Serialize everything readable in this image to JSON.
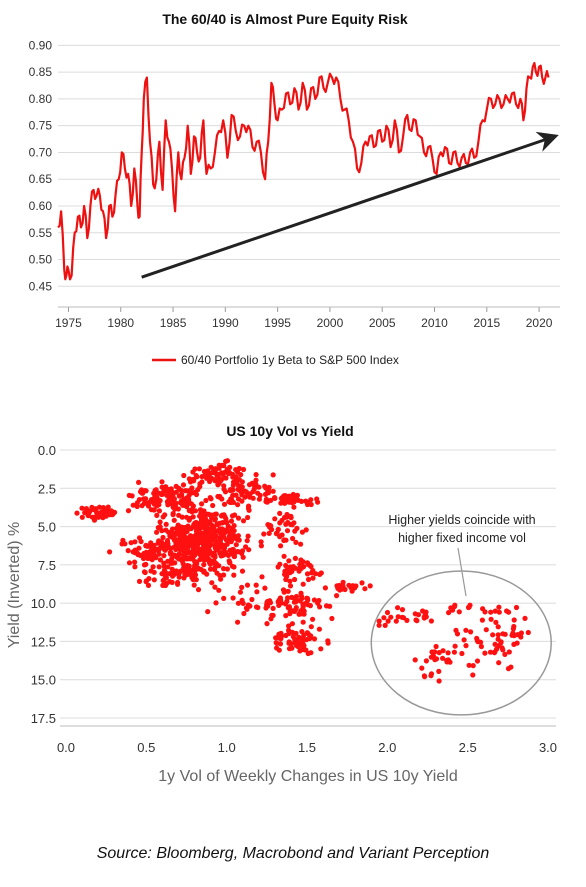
{
  "chart_data": [
    {
      "type": "line",
      "title": "The 60/40 is Almost Pure Equity Risk",
      "xlim": [
        1974,
        2022
      ],
      "ylim": [
        0.43,
        0.91
      ],
      "x_ticks": [
        1975,
        1980,
        1985,
        1990,
        1995,
        2000,
        2005,
        2010,
        2015,
        2020
      ],
      "y_ticks": [
        0.45,
        0.5,
        0.55,
        0.6,
        0.65,
        0.7,
        0.75,
        0.8,
        0.85,
        0.9
      ],
      "y_tick_labels": [
        "0.45",
        "0.50",
        "0.55",
        "0.60",
        "0.65",
        "0.70",
        "0.75",
        "0.80",
        "0.85",
        "0.90"
      ],
      "grid": "horizontal",
      "legend_position": "bottom",
      "series": [
        {
          "name": "60/40 Portfolio 1y Beta to S&P 500 Index",
          "color": "#ee1111",
          "x": [
            1974.0,
            1974.3,
            1974.6,
            1974.8,
            1975.0,
            1975.3,
            1975.6,
            1975.9,
            1976.2,
            1976.5,
            1976.8,
            1977.1,
            1977.4,
            1977.7,
            1978.0,
            1978.3,
            1978.6,
            1978.9,
            1979.2,
            1979.5,
            1979.8,
            1980.1,
            1980.4,
            1980.7,
            1981.0,
            1981.3,
            1981.6,
            1981.8,
            1982.0,
            1982.2,
            1982.5,
            1982.8,
            1983.1,
            1983.4,
            1983.7,
            1984.0,
            1984.3,
            1984.6,
            1984.9,
            1985.2,
            1985.5,
            1985.8,
            1986.1,
            1986.4,
            1986.7,
            1987.0,
            1987.3,
            1987.6,
            1987.9,
            1988.2,
            1988.6,
            1989.0,
            1989.4,
            1989.8,
            1990.2,
            1990.6,
            1991.0,
            1991.4,
            1991.8,
            1992.2,
            1992.6,
            1993.0,
            1993.4,
            1993.8,
            1994.1,
            1994.4,
            1994.7,
            1995.0,
            1995.4,
            1995.8,
            1996.2,
            1996.6,
            1997.0,
            1997.4,
            1997.8,
            1998.2,
            1998.6,
            1999.0,
            1999.4,
            1999.8,
            2000.2,
            2000.6,
            2001.0,
            2001.4,
            2001.8,
            2002.2,
            2002.6,
            2003.0,
            2003.4,
            2003.8,
            2004.2,
            2004.6,
            2005.0,
            2005.4,
            2005.8,
            2006.2,
            2006.6,
            2007.0,
            2007.4,
            2007.8,
            2008.2,
            2008.6,
            2009.0,
            2009.4,
            2009.8,
            2010.2,
            2010.6,
            2011.0,
            2011.4,
            2011.8,
            2012.2,
            2012.6,
            2013.0,
            2013.4,
            2013.8,
            2014.2,
            2014.6,
            2015.0,
            2015.4,
            2015.8,
            2016.2,
            2016.6,
            2017.0,
            2017.4,
            2017.8,
            2018.2,
            2018.5,
            2018.8,
            2019.1,
            2019.4,
            2019.7,
            2020.0,
            2020.3,
            2020.6,
            2020.9
          ],
          "y": [
            0.56,
            0.59,
            0.48,
            0.47,
            0.48,
            0.47,
            0.55,
            0.58,
            0.56,
            0.6,
            0.54,
            0.6,
            0.63,
            0.62,
            0.62,
            0.59,
            0.54,
            0.6,
            0.58,
            0.62,
            0.65,
            0.7,
            0.67,
            0.66,
            0.6,
            0.67,
            0.6,
            0.58,
            0.7,
            0.8,
            0.84,
            0.72,
            0.64,
            0.65,
            0.72,
            0.63,
            0.76,
            0.72,
            0.67,
            0.59,
            0.7,
            0.65,
            0.69,
            0.75,
            0.66,
            0.73,
            0.7,
            0.69,
            0.76,
            0.66,
            0.67,
            0.7,
            0.74,
            0.76,
            0.69,
            0.77,
            0.74,
            0.73,
            0.75,
            0.75,
            0.71,
            0.72,
            0.7,
            0.65,
            0.72,
            0.83,
            0.79,
            0.76,
            0.78,
            0.81,
            0.79,
            0.82,
            0.78,
            0.83,
            0.78,
            0.82,
            0.8,
            0.84,
            0.82,
            0.83,
            0.84,
            0.84,
            0.8,
            0.78,
            0.76,
            0.72,
            0.67,
            0.68,
            0.72,
            0.73,
            0.71,
            0.74,
            0.72,
            0.75,
            0.71,
            0.76,
            0.7,
            0.73,
            0.77,
            0.74,
            0.76,
            0.73,
            0.7,
            0.71,
            0.69,
            0.66,
            0.7,
            0.71,
            0.68,
            0.7,
            0.68,
            0.69,
            0.68,
            0.7,
            0.69,
            0.72,
            0.76,
            0.78,
            0.8,
            0.79,
            0.8,
            0.79,
            0.8,
            0.81,
            0.79,
            0.8,
            0.76,
            0.82,
            0.84,
            0.86,
            0.85,
            0.86,
            0.84,
            0.84,
            0.84
          ]
        }
      ],
      "annotations": [
        {
          "type": "arrow",
          "from": [
            1982.0,
            0.467
          ],
          "to": [
            2021.5,
            0.73
          ],
          "color": "#222222"
        }
      ]
    },
    {
      "type": "scatter",
      "title": "US 10y Vol vs Yield",
      "xlabel": "1y Vol of Weekly Changes in US 10y Yield",
      "ylabel": "Yield (Inverted) %",
      "xlim": [
        -0.05,
        3.05
      ],
      "ylim": [
        0.0,
        17.5
      ],
      "y_inverted": true,
      "x_ticks": [
        0.0,
        0.5,
        1.0,
        1.5,
        2.0,
        2.5,
        3.0
      ],
      "x_tick_labels": [
        "0.0",
        "0.5",
        "1.0",
        "1.5",
        "2.0",
        "2.5",
        "3.0"
      ],
      "y_ticks": [
        0.0,
        2.5,
        5.0,
        7.5,
        10.0,
        12.5,
        15.0,
        17.5
      ],
      "y_tick_labels": [
        "0.0",
        "2.5",
        "5.0",
        "7.5",
        "10.0",
        "12.5",
        "15.0",
        "17.5"
      ],
      "grid": "horizontal",
      "point_color": "#ff1111",
      "clusters": [
        {
          "cx": 0.85,
          "cy": 6.0,
          "sx": 0.18,
          "sy": 1.6,
          "n": 520
        },
        {
          "cx": 0.62,
          "cy": 3.2,
          "sx": 0.14,
          "sy": 0.7,
          "n": 120
        },
        {
          "cx": 0.95,
          "cy": 1.6,
          "sx": 0.12,
          "sy": 0.6,
          "n": 70
        },
        {
          "cx": 1.15,
          "cy": 2.7,
          "sx": 0.14,
          "sy": 0.7,
          "n": 70
        },
        {
          "cx": 0.2,
          "cy": 4.1,
          "sx": 0.08,
          "sy": 0.25,
          "n": 45
        },
        {
          "cx": 0.5,
          "cy": 6.6,
          "sx": 0.12,
          "sy": 0.6,
          "n": 60
        },
        {
          "cx": 0.65,
          "cy": 8.3,
          "sx": 0.12,
          "sy": 0.5,
          "n": 35
        },
        {
          "cx": 1.42,
          "cy": 3.3,
          "sx": 0.1,
          "sy": 0.3,
          "n": 35
        },
        {
          "cx": 1.35,
          "cy": 5.3,
          "sx": 0.1,
          "sy": 0.8,
          "n": 40
        },
        {
          "cx": 1.45,
          "cy": 7.8,
          "sx": 0.1,
          "sy": 0.6,
          "n": 40
        },
        {
          "cx": 1.45,
          "cy": 10.2,
          "sx": 0.15,
          "sy": 1.0,
          "n": 70
        },
        {
          "cx": 1.45,
          "cy": 12.5,
          "sx": 0.1,
          "sy": 0.6,
          "n": 70
        },
        {
          "cx": 1.75,
          "cy": 8.9,
          "sx": 0.08,
          "sy": 0.3,
          "n": 25
        },
        {
          "cx": 1.1,
          "cy": 9.8,
          "sx": 0.15,
          "sy": 1.2,
          "n": 30
        },
        {
          "cx": 2.15,
          "cy": 10.8,
          "sx": 0.15,
          "sy": 0.5,
          "n": 25
        },
        {
          "cx": 2.3,
          "cy": 13.9,
          "sx": 0.08,
          "sy": 0.8,
          "n": 25
        },
        {
          "cx": 2.62,
          "cy": 12.5,
          "sx": 0.15,
          "sy": 1.5,
          "n": 45
        },
        {
          "cx": 2.8,
          "cy": 12.0,
          "sx": 0.08,
          "sy": 0.6,
          "n": 15
        },
        {
          "cx": 2.55,
          "cy": 10.5,
          "sx": 0.2,
          "sy": 0.3,
          "n": 15
        }
      ],
      "annotation": {
        "text_lines": [
          "Higher yields coincide with",
          "higher fixed income vol"
        ],
        "ellipse_center": [
          2.46,
          12.6
        ],
        "ellipse_radius": [
          0.56,
          4.7
        ]
      }
    }
  ],
  "source": "Source: Bloomberg, Macrobond and Variant Perception"
}
